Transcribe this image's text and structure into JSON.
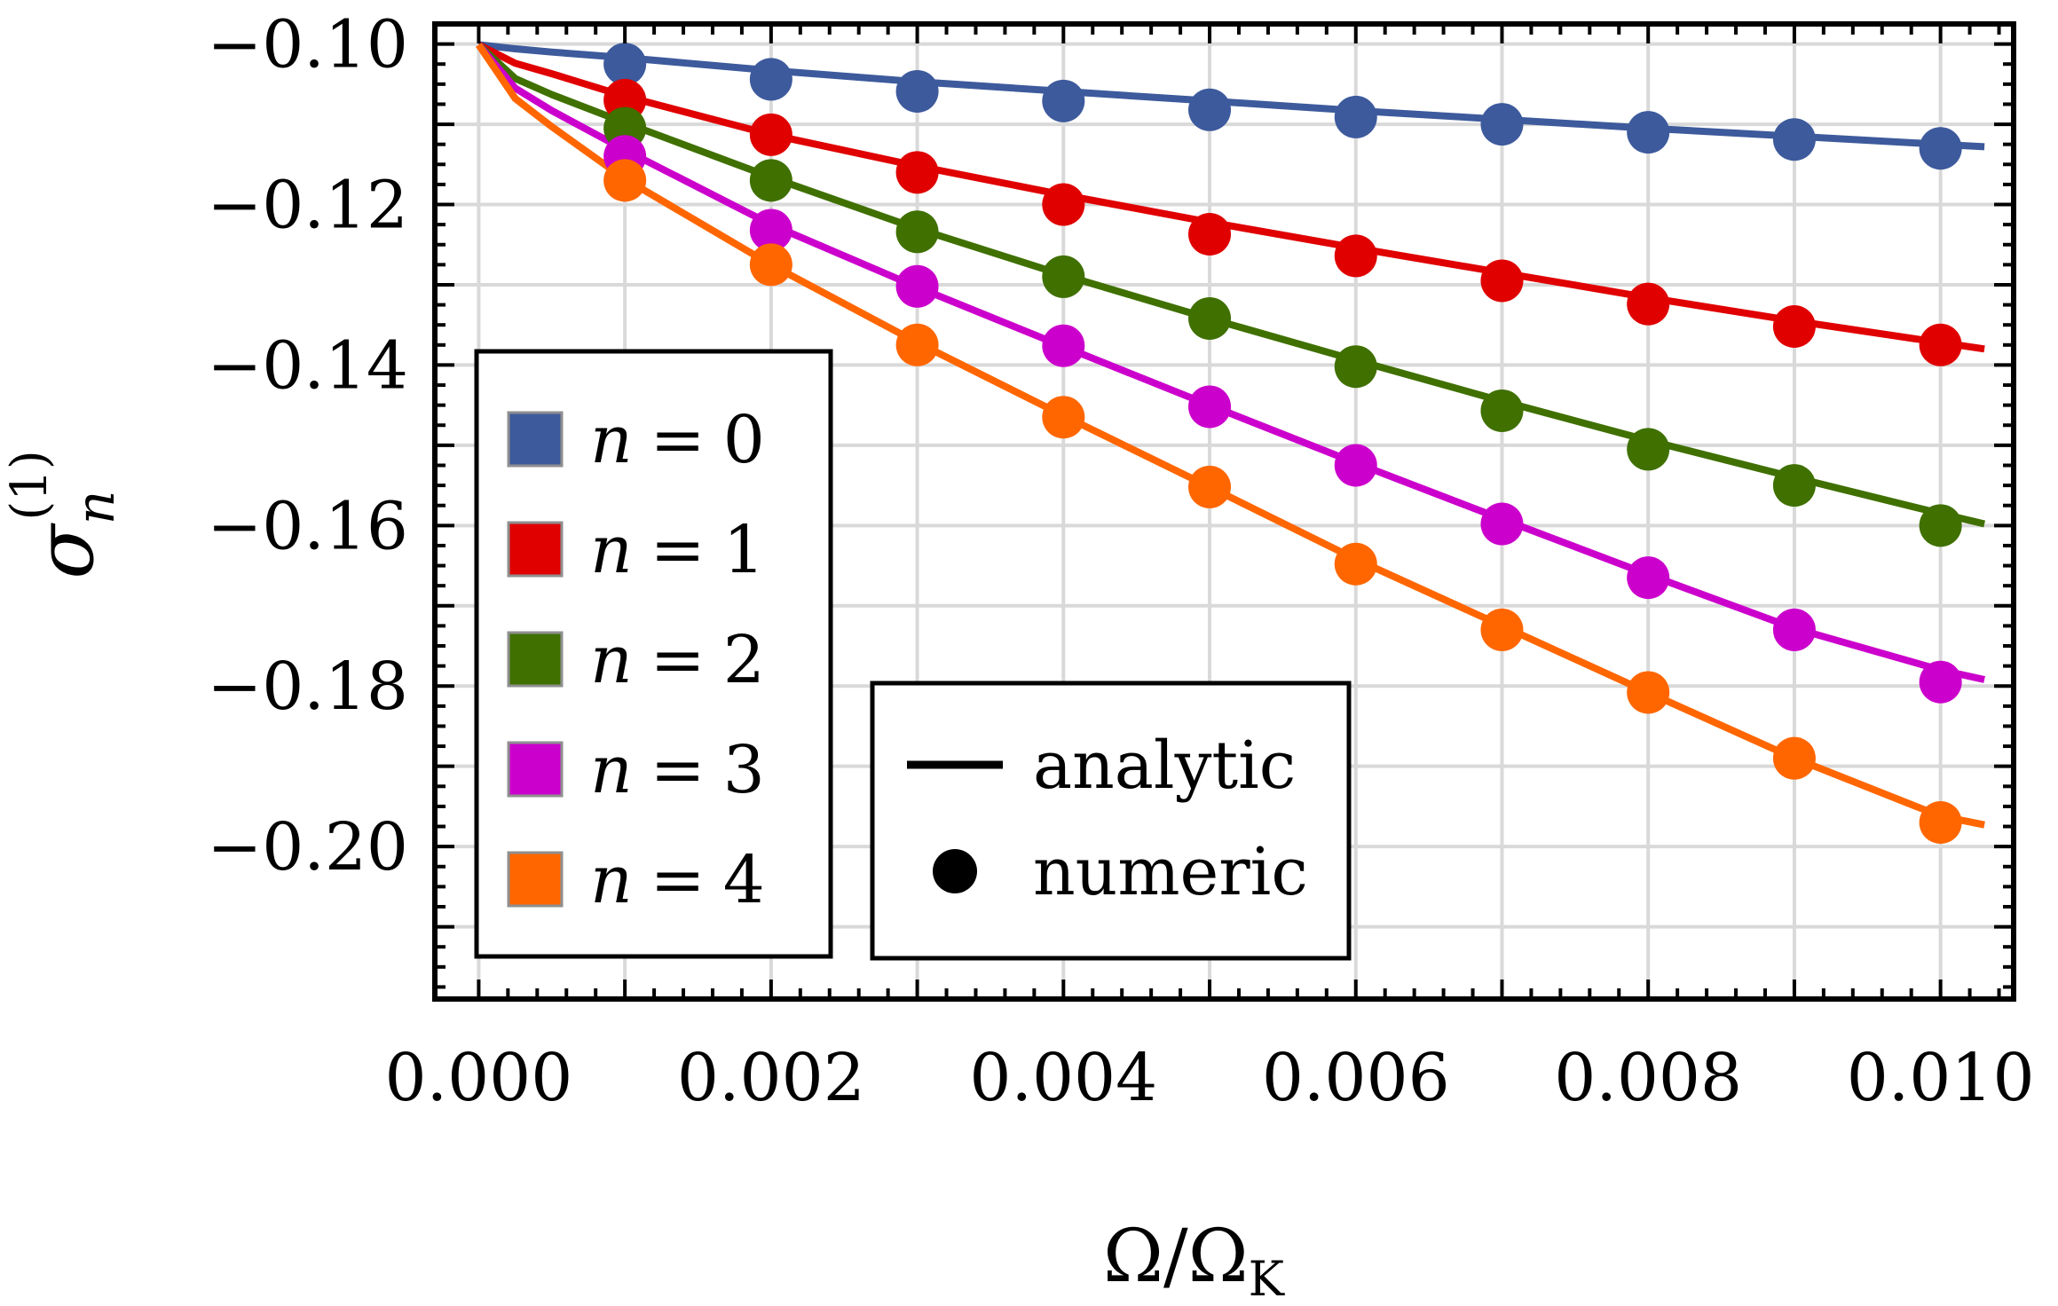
{
  "chart_data": {
    "type": "scatter",
    "title": "",
    "xlabel": "Ω/Ω_K",
    "ylabel": "σ_n^(1)",
    "xlim": [
      -0.0003,
      0.0105
    ],
    "ylim": [
      -0.219,
      -0.0975
    ],
    "grid": true,
    "x_ticks": [
      "0.000",
      "0.002",
      "0.004",
      "0.006",
      "0.008",
      "0.010"
    ],
    "x_tick_values": [
      0.0,
      0.002,
      0.004,
      0.006,
      0.008,
      0.01
    ],
    "y_ticks": [
      "−0.10",
      "−0.12",
      "−0.14",
      "−0.16",
      "−0.18",
      "−0.20"
    ],
    "y_tick_values": [
      -0.1,
      -0.12,
      -0.14,
      -0.16,
      -0.18,
      -0.2
    ],
    "x": [
      0.001,
      0.002,
      0.003,
      0.004,
      0.005,
      0.006,
      0.007,
      0.008,
      0.009,
      0.01
    ],
    "series": [
      {
        "name": "n = 0",
        "color": "#3d5a9c",
        "points": [
          -0.1025,
          -0.1044,
          -0.1059,
          -0.1071,
          -0.1082,
          -0.1091,
          -0.11,
          -0.111,
          -0.1119,
          -0.113
        ],
        "curve_x": [
          0.0,
          0.00025,
          0.0005,
          0.001,
          0.002,
          0.003,
          0.004,
          0.005,
          0.006,
          0.007,
          0.008,
          0.009,
          0.01,
          0.0103
        ],
        "curve_y": [
          -0.1001,
          -0.1006,
          -0.101,
          -0.1017,
          -0.1033,
          -0.1047,
          -0.1059,
          -0.1071,
          -0.1083,
          -0.1094,
          -0.1105,
          -0.1115,
          -0.1125,
          -0.1128
        ]
      },
      {
        "name": "n = 1",
        "color": "#e00000",
        "points": [
          -0.107,
          -0.1113,
          -0.116,
          -0.12,
          -0.1237,
          -0.1264,
          -0.1295,
          -0.1324,
          -0.1352,
          -0.1375
        ],
        "curve_x": [
          0.0,
          0.00025,
          0.0005,
          0.001,
          0.002,
          0.003,
          0.004,
          0.005,
          0.006,
          0.007,
          0.008,
          0.009,
          0.01,
          0.0103
        ],
        "curve_y": [
          -0.1001,
          -0.1024,
          -0.1037,
          -0.1065,
          -0.1113,
          -0.1152,
          -0.1188,
          -0.1222,
          -0.1254,
          -0.1285,
          -0.1316,
          -0.1345,
          -0.1372,
          -0.138
        ]
      },
      {
        "name": "n = 2",
        "color": "#3f7000",
        "points": [
          -0.1105,
          -0.117,
          -0.1234,
          -0.129,
          -0.1342,
          -0.1402,
          -0.1457,
          -0.1505,
          -0.155,
          -0.16
        ],
        "curve_x": [
          0.0,
          0.00025,
          0.0005,
          0.001,
          0.002,
          0.003,
          0.004,
          0.005,
          0.006,
          0.007,
          0.008,
          0.009,
          0.01,
          0.0103
        ],
        "curve_y": [
          -0.1001,
          -0.1043,
          -0.1063,
          -0.1098,
          -0.1166,
          -0.123,
          -0.1288,
          -0.1342,
          -0.1394,
          -0.1445,
          -0.1494,
          -0.154,
          -0.1585,
          -0.1598
        ]
      },
      {
        "name": "n = 3",
        "color": "#cc00cc",
        "points": [
          -0.114,
          -0.1232,
          -0.1302,
          -0.1376,
          -0.1452,
          -0.1525,
          -0.1598,
          -0.1665,
          -0.173,
          -0.1795
        ],
        "curve_x": [
          0.0,
          0.00025,
          0.0005,
          0.001,
          0.002,
          0.003,
          0.004,
          0.005,
          0.006,
          0.007,
          0.008,
          0.009,
          0.01,
          0.0103
        ],
        "curve_y": [
          -0.1001,
          -0.1055,
          -0.1083,
          -0.1132,
          -0.1225,
          -0.1303,
          -0.1377,
          -0.145,
          -0.1522,
          -0.1592,
          -0.1661,
          -0.1728,
          -0.178,
          -0.1792
        ]
      },
      {
        "name": "n = 4",
        "color": "#ff6600",
        "points": [
          -0.117,
          -0.1275,
          -0.1375,
          -0.1465,
          -0.1552,
          -0.1648,
          -0.173,
          -0.1808,
          -0.189,
          -0.197
        ],
        "curve_x": [
          0.0,
          0.00025,
          0.0005,
          0.001,
          0.002,
          0.003,
          0.004,
          0.005,
          0.006,
          0.007,
          0.008,
          0.009,
          0.01,
          0.0103
        ],
        "curve_y": [
          -0.1001,
          -0.1068,
          -0.1103,
          -0.1168,
          -0.1275,
          -0.1372,
          -0.1463,
          -0.1552,
          -0.1642,
          -0.1725,
          -0.1808,
          -0.189,
          -0.1962,
          -0.1973
        ]
      }
    ],
    "legend_entries": [
      {
        "name_var": "n",
        "eq": "=",
        "value": "0",
        "color": "#3d5a9c"
      },
      {
        "name_var": "n",
        "eq": "=",
        "value": "1",
        "color": "#e00000"
      },
      {
        "name_var": "n",
        "eq": "=",
        "value": "2",
        "color": "#3f7000"
      },
      {
        "name_var": "n",
        "eq": "=",
        "value": "3",
        "color": "#cc00cc"
      },
      {
        "name_var": "n",
        "eq": "=",
        "value": "4",
        "color": "#ff6600"
      }
    ],
    "legend_placement": "left",
    "style_legend": {
      "placement": "bottom-center",
      "line_label": "analytic",
      "marker_label": "numeric"
    },
    "ylabel_parts": {
      "base": "σ",
      "sub": "n",
      "sup": "(1)"
    },
    "xlabel_parts": {
      "num": "Ω",
      "slash": "/",
      "den": "Ω",
      "den_sub": "K"
    }
  }
}
